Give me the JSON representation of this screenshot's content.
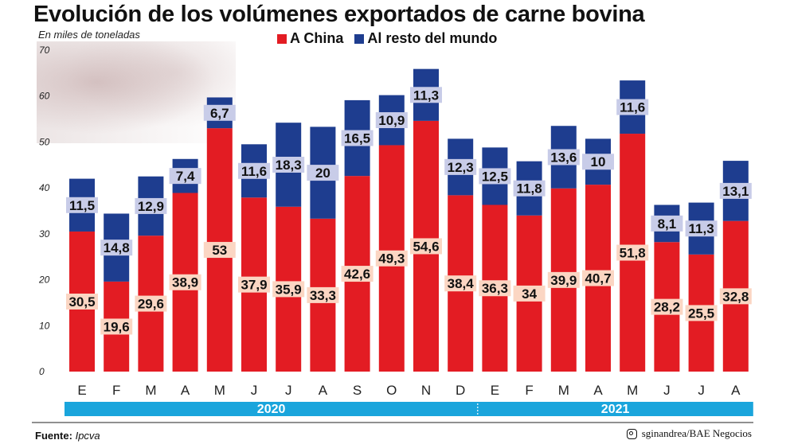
{
  "header": {
    "title": "Evolución de los volúmenes exportados de carne bovina",
    "unit_label": "En miles de toneladas"
  },
  "footer": {
    "source_label": "Fuente:",
    "source_name": "Ipcva",
    "credit": "sginandrea/BAE Negocios",
    "credit_icon": "instagram-icon"
  },
  "colors": {
    "china": "#e31c23",
    "rest": "#1e3d8f",
    "label_china_bg": "#fbd6c3",
    "label_rest_bg": "#c8cce8",
    "year_band": "#1aa5dc"
  },
  "chart_data": {
    "type": "bar",
    "stacked": true,
    "categories": [
      "E",
      "F",
      "M",
      "A",
      "M",
      "J",
      "J",
      "A",
      "S",
      "O",
      "N",
      "D",
      "E",
      "F",
      "M",
      "A",
      "M",
      "J",
      "J",
      "A"
    ],
    "series": [
      {
        "name": "A China",
        "values": [
          30.5,
          19.6,
          29.6,
          38.9,
          53,
          37.9,
          35.9,
          33.3,
          42.6,
          49.3,
          54.6,
          38.4,
          36.3,
          34,
          39.9,
          40.7,
          51.8,
          28.2,
          25.5,
          32.8
        ],
        "labels": [
          "30,5",
          "19,6",
          "29,6",
          "38,9",
          "53",
          "37,9",
          "35,9",
          "33,3",
          "42,6",
          "49,3",
          "54,6",
          "38,4",
          "36,3",
          "34",
          "39,9",
          "40,7",
          "51,8",
          "28,2",
          "25,5",
          "32,8"
        ]
      },
      {
        "name": "Al resto del mundo",
        "values": [
          11.5,
          14.8,
          12.9,
          7.4,
          6.7,
          11.6,
          18.3,
          20,
          16.5,
          10.9,
          11.3,
          12.3,
          12.5,
          11.8,
          13.6,
          10,
          11.6,
          8.1,
          11.3,
          13.1
        ],
        "labels": [
          "11,5",
          "14,8",
          "12,9",
          "7,4",
          "6,7",
          "11,6",
          "18,3",
          "20",
          "16,5",
          "10,9",
          "11,3",
          "12,3",
          "12,5",
          "11,8",
          "13,6",
          "10",
          "11,6",
          "8,1",
          "11,3",
          "13,1"
        ]
      }
    ],
    "ylim": [
      0,
      70
    ],
    "yticks": [
      0,
      10,
      20,
      30,
      40,
      50,
      60,
      70
    ],
    "grid": false,
    "legend_position": "top",
    "years": [
      {
        "label": "2020",
        "start_index": 0,
        "end_index": 11
      },
      {
        "label": "2021",
        "start_index": 12,
        "end_index": 19
      }
    ]
  }
}
